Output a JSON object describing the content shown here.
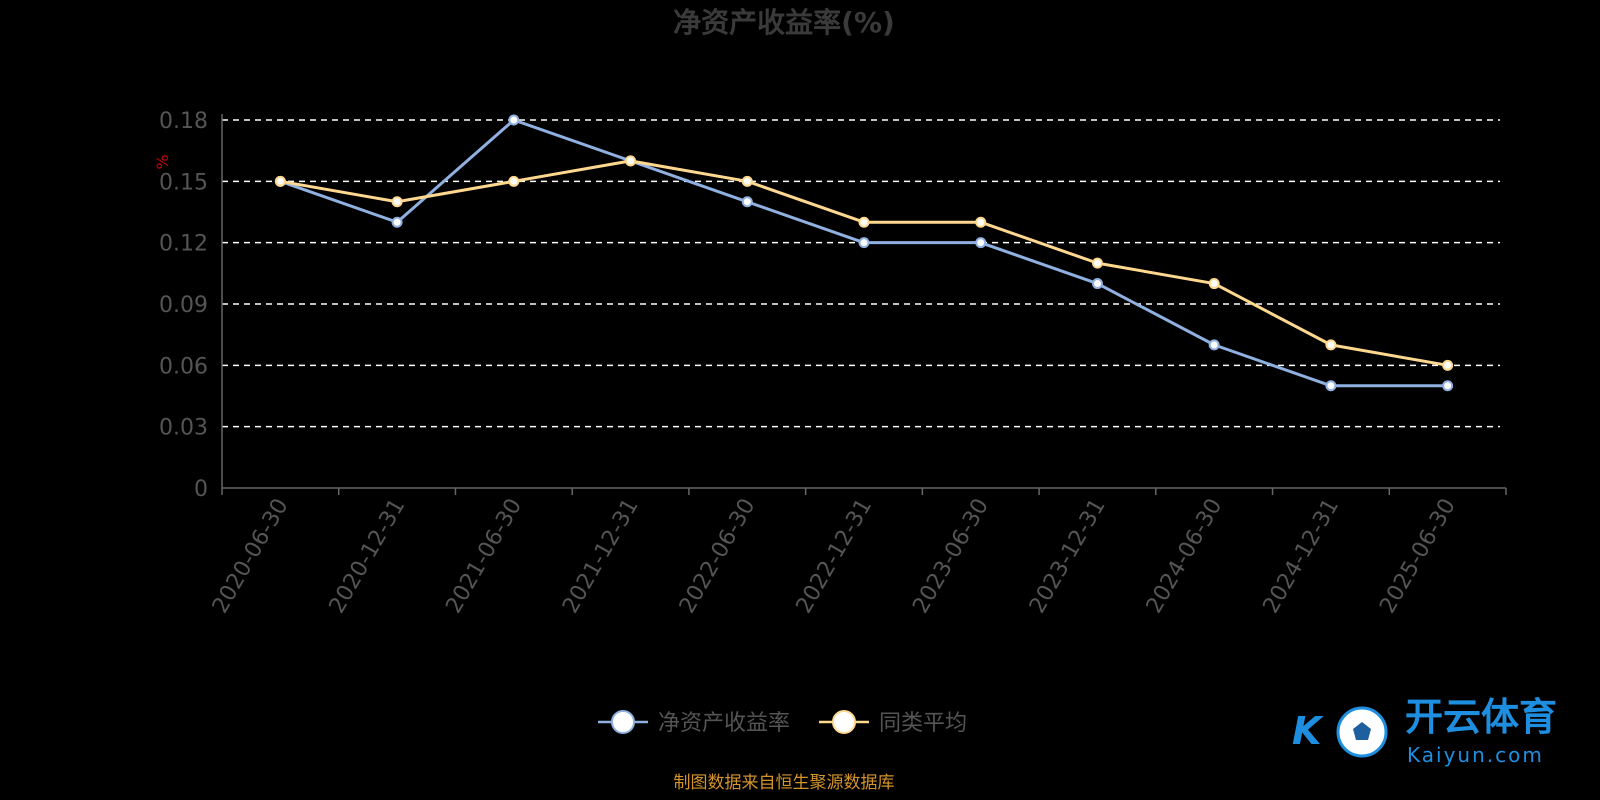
{
  "chart_data": {
    "type": "line",
    "title": "净资产收益率(%)",
    "ylabel": "%",
    "xlabel": "",
    "ylim": [
      0,
      0.18
    ],
    "yticks": [
      "0",
      "0.03",
      "0.06",
      "0.09",
      "0.12",
      "0.15",
      "0.18"
    ],
    "ytick_values": [
      0,
      0.03,
      0.06,
      0.09,
      0.12,
      0.15,
      0.18
    ],
    "categories": [
      "2020-06-30",
      "2020-12-31",
      "2021-06-30",
      "2021-12-31",
      "2022-06-30",
      "2022-12-31",
      "2023-06-30",
      "2023-12-31",
      "2024-06-30",
      "2024-12-31",
      "2025-06-30"
    ],
    "series": [
      {
        "name": "净资产收益率",
        "color": "#8fb0e0",
        "values": [
          0.15,
          0.13,
          0.18,
          0.16,
          0.14,
          0.12,
          0.12,
          0.1,
          0.07,
          0.05,
          0.05
        ]
      },
      {
        "name": "同类平均",
        "color": "#ffd890",
        "values": [
          0.15,
          0.14,
          0.15,
          0.16,
          0.15,
          0.13,
          0.13,
          0.11,
          0.1,
          0.07,
          0.06
        ]
      }
    ],
    "grid": true,
    "legend_position": "bottom-center"
  },
  "source_note": "制图数据来自恒生聚源数据库",
  "logo": {
    "text": "开云体育",
    "sub": "Kaiyun.com"
  }
}
